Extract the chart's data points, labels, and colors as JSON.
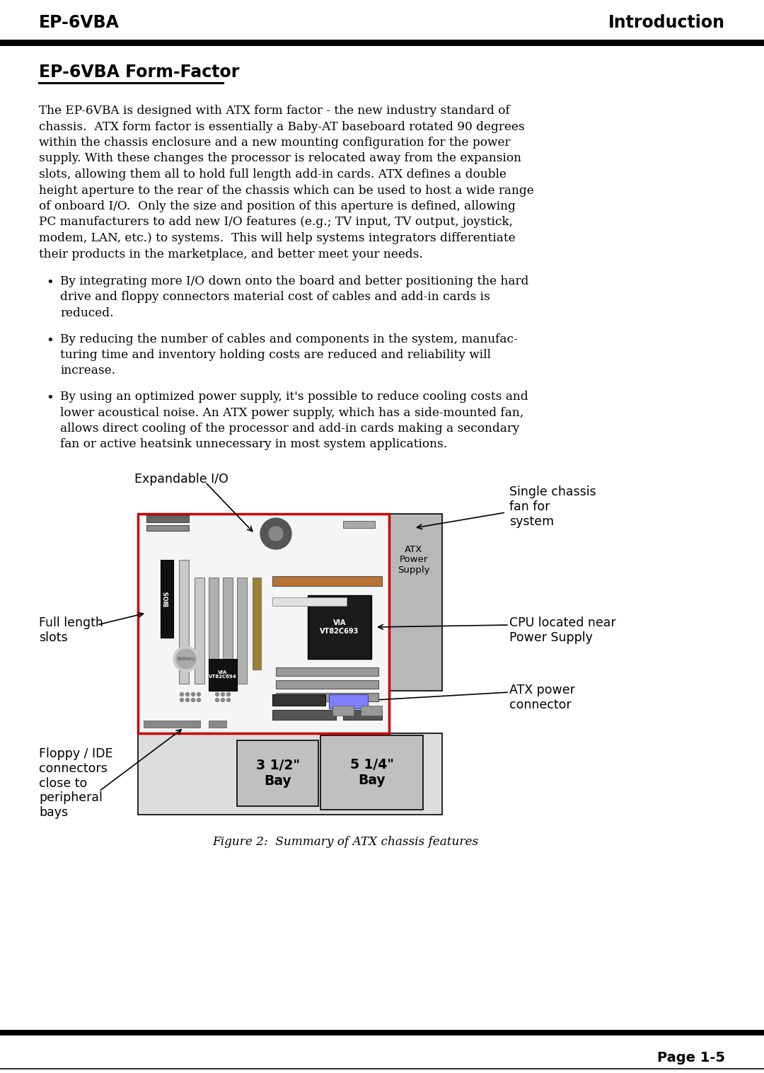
{
  "title_left": "EP-6VBA",
  "title_right": "Introduction",
  "section_title": "EP-6VBA Form-Factor",
  "body_text": "The EP-6VBA is designed with ATX form factor - the new industry standard of\nchassis.  ATX form factor is essentially a Baby-AT baseboard rotated 90 degrees\nwithin the chassis enclosure and a new mounting configuration for the power\nsupply. With these changes the processor is relocated away from the expansion\nslots, allowing them all to hold full length add-in cards. ATX defines a double\nheight aperture to the rear of the chassis which can be used to host a wide range\nof onboard I/O.  Only the size and position of this aperture is defined, allowing\nPC manufacturers to add new I/O features (e.g.; TV input, TV output, joystick,\nmodem, LAN, etc.) to systems.  This will help systems integrators differentiate\ntheir products in the marketplace, and better meet your needs.",
  "bullet1": "By integrating more I/O down onto the board and better positioning the hard\ndrive and floppy connectors material cost of cables and add-in cards is\nreduced.",
  "bullet2": "By reducing the number of cables and components in the system, manufac-\nturing time and inventory holding costs are reduced and reliability will\nincrease.",
  "bullet3": "By using an optimized power supply, it's possible to reduce cooling costs and\nlower acoustical noise. An ATX power supply, which has a side-mounted fan,\nallows direct cooling of the processor and add-in cards making a secondary\nfan or active heatsink unnecessary in most system applications.",
  "figure_caption": "Figure 2:  Summary of ATX chassis features",
  "page_text": "Page 1-5",
  "label_expandable_io": "Expandable I/O",
  "label_single_chassis": "Single chassis\nfan for\nsystem",
  "label_full_length": "Full length\nslots",
  "label_cpu_located": "CPU located near\nPower Supply",
  "label_atx_power": "ATX power\nconnector",
  "label_floppy_ide": "Floppy / IDE\nconnectors\nclose to\nperipheral\nbays",
  "label_atx_ps": "ATX\nPower\nSupply",
  "label_bay_small": "3 1/2\"\nBay",
  "label_bay_large": "5 1/4\"\nBay",
  "bg_color": "#ffffff",
  "text_color": "#000000",
  "header_bar_color": "#000000",
  "red_border_color": "#cc0000",
  "gray_color": "#aaaaaa",
  "dark_gray": "#888888",
  "light_gray": "#cccccc",
  "medium_gray": "#b8b8b8"
}
